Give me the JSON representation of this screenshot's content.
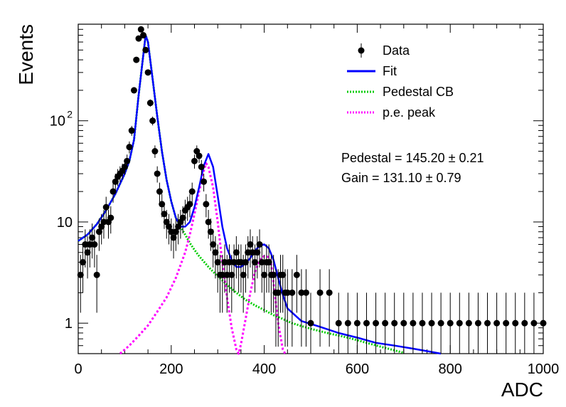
{
  "chart_data": {
    "type": "scatter",
    "xlabel": "ADC",
    "ylabel": "Events",
    "xlim": [
      0,
      1000
    ],
    "ylim": [
      0.5,
      900
    ],
    "log_y": true,
    "x_ticks": [
      0,
      200,
      400,
      600,
      800,
      1000
    ],
    "y_ticks": [
      {
        "value": 1,
        "label": "1"
      },
      {
        "value": 10,
        "label": "10"
      },
      {
        "value": 100,
        "label": "10",
        "exponent": "2"
      }
    ],
    "legend_position": "top-right",
    "legend": [
      {
        "key": "data",
        "label": "Data",
        "style": "marker",
        "color": "#000000"
      },
      {
        "key": "fit",
        "label": "Fit",
        "style": "solid",
        "color": "#0000ff"
      },
      {
        "key": "pedestal",
        "label": "Pedestal CB",
        "style": "dotted",
        "color": "#00cc00"
      },
      {
        "key": "pe",
        "label": "p.e. peak",
        "style": "dotted",
        "color": "#ff00ff"
      }
    ],
    "annotations": [
      {
        "text": "Pedestal = 145.20",
        "pm": "± 0.21"
      },
      {
        "text": "Gain = 131.10",
        "pm": "± 0.79"
      }
    ],
    "series": [
      {
        "name": "Data",
        "style": "points",
        "x": [
          5,
          10,
          15,
          20,
          25,
          30,
          35,
          40,
          45,
          50,
          55,
          60,
          65,
          70,
          75,
          80,
          85,
          90,
          95,
          100,
          105,
          110,
          115,
          120,
          125,
          130,
          135,
          140,
          145,
          150,
          155,
          160,
          165,
          170,
          175,
          180,
          185,
          190,
          195,
          200,
          205,
          210,
          215,
          220,
          225,
          230,
          235,
          240,
          245,
          250,
          255,
          260,
          265,
          270,
          275,
          280,
          285,
          290,
          295,
          300,
          305,
          310,
          315,
          320,
          325,
          330,
          335,
          340,
          345,
          350,
          355,
          360,
          365,
          370,
          375,
          380,
          385,
          390,
          395,
          400,
          405,
          410,
          415,
          420,
          425,
          430,
          435,
          440,
          445,
          450,
          460,
          470,
          480,
          490,
          500,
          520,
          540,
          560,
          580,
          600,
          620,
          640,
          660,
          680,
          700,
          720,
          740,
          760,
          780,
          800,
          820,
          840,
          860,
          880,
          900,
          920,
          940,
          960,
          980,
          1000
        ],
        "y": [
          3,
          4,
          6,
          5,
          6,
          7,
          6,
          3,
          8,
          9,
          10,
          14,
          10,
          11,
          20,
          25,
          28,
          30,
          32,
          35,
          40,
          55,
          80,
          200,
          400,
          650,
          800,
          700,
          500,
          300,
          150,
          100,
          50,
          30,
          20,
          15,
          12,
          10,
          9,
          8,
          7,
          8,
          9,
          10,
          11,
          13,
          14,
          15,
          20,
          40,
          50,
          45,
          35,
          25,
          15,
          10,
          8,
          6,
          5,
          4,
          3,
          3,
          4,
          3,
          4,
          3,
          4,
          5,
          4,
          4,
          3,
          4,
          5,
          6,
          5,
          4,
          5,
          6,
          4,
          3,
          4,
          4,
          3,
          3,
          2,
          2,
          3,
          3,
          2,
          2,
          2,
          3,
          2,
          2,
          1,
          2,
          2,
          1,
          1,
          1,
          1,
          1,
          1,
          1,
          1,
          1,
          1,
          1,
          1,
          1,
          1,
          1,
          1,
          1,
          1,
          1,
          1,
          1,
          1,
          1
        ]
      },
      {
        "name": "Fit",
        "style": "solid",
        "x": [
          0,
          20,
          40,
          60,
          80,
          100,
          110,
          120,
          130,
          140,
          145,
          150,
          160,
          170,
          180,
          190,
          200,
          210,
          220,
          230,
          240,
          250,
          260,
          270,
          280,
          290,
          300,
          310,
          320,
          330,
          340,
          350,
          360,
          370,
          380,
          390,
          400,
          410,
          420,
          430,
          440,
          450,
          480,
          520,
          560,
          600,
          640,
          680,
          720,
          760,
          780
        ],
        "y": [
          6.5,
          7.5,
          9.5,
          13,
          19,
          30,
          40,
          65,
          180,
          450,
          700,
          600,
          260,
          110,
          50,
          26,
          16,
          11,
          9,
          9,
          10,
          14,
          22,
          36,
          47,
          35,
          18,
          9,
          5.5,
          4.2,
          3.6,
          3.6,
          3.9,
          4.4,
          5.2,
          5.8,
          6,
          5.5,
          4.2,
          2.8,
          1.9,
          1.4,
          1.05,
          0.92,
          0.8,
          0.72,
          0.64,
          0.6,
          0.56,
          0.52,
          0.5
        ]
      },
      {
        "name": "Pedestal CB",
        "style": "dotted",
        "x": [
          0,
          20,
          40,
          60,
          80,
          100,
          110,
          120,
          130,
          140,
          145,
          150,
          160,
          170,
          180,
          190,
          200,
          210,
          220,
          230,
          240,
          250,
          260,
          280,
          300,
          320,
          340,
          360,
          380,
          400,
          420,
          440,
          460,
          500,
          540,
          580,
          620,
          660,
          700
        ],
        "y": [
          6.5,
          7.5,
          9.5,
          13,
          19,
          30,
          40,
          65,
          180,
          450,
          700,
          600,
          260,
          110,
          50,
          26,
          16,
          11,
          9,
          7.5,
          6.2,
          5.3,
          4.6,
          3.6,
          2.9,
          2.4,
          2,
          1.7,
          1.5,
          1.35,
          1.2,
          1.1,
          1,
          0.88,
          0.79,
          0.72,
          0.64,
          0.57,
          0.51
        ]
      },
      {
        "name": "p.e. peak",
        "style": "dotted",
        "x": [
          90,
          110,
          130,
          150,
          170,
          190,
          210,
          230,
          240,
          250,
          260,
          270,
          275,
          280,
          290,
          300,
          310,
          320,
          330,
          340,
          345,
          350,
          360,
          370,
          380,
          390,
          400,
          410,
          415,
          420,
          430,
          440,
          445
        ],
        "y": [
          0.5,
          0.6,
          0.75,
          0.95,
          1.3,
          1.8,
          2.8,
          5,
          7.5,
          12,
          20,
          32,
          38,
          35,
          22,
          10,
          4,
          1.8,
          0.9,
          0.55,
          0.5,
          0.62,
          1.1,
          2,
          3.2,
          4.2,
          4.6,
          4.5,
          3.8,
          2.5,
          1,
          0.55,
          0.5
        ]
      }
    ]
  }
}
